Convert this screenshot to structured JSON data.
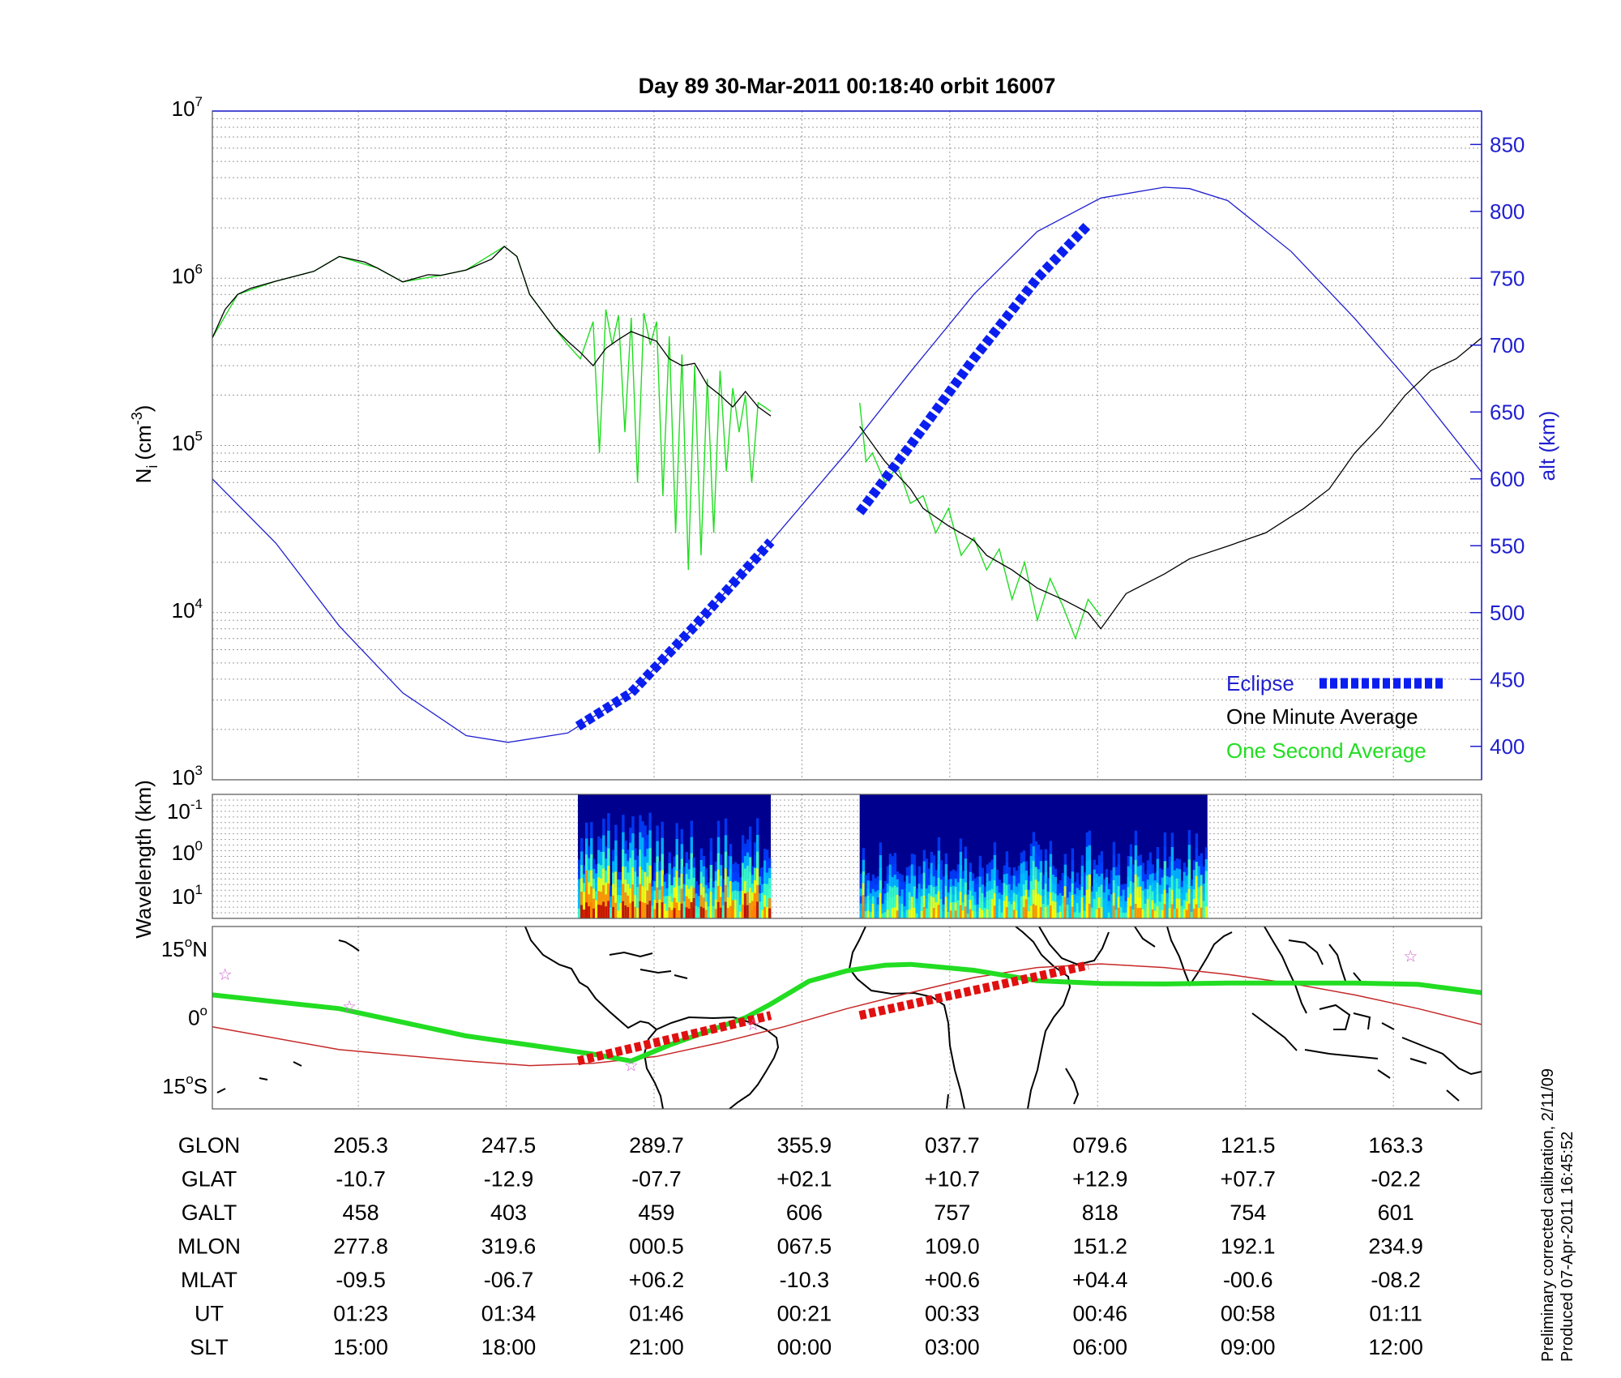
{
  "chart_data": [
    {
      "type": "line",
      "panel": "density_altitude",
      "title": "Day 89  30-Mar-2011 00:18:40   orbit 16007",
      "ylabel": "N_i (cm^-3)",
      "ylabel_main": "N",
      "ylabel_sub": "i",
      "ylabel_unit_base": "(cm",
      "ylabel_unit_exp": "-3",
      "ylabel_unit_close": ")",
      "y2label": "alt (km)",
      "yscale": "log",
      "ylim": [
        1000,
        10000000
      ],
      "y2lim": [
        375,
        875
      ],
      "xlim": [
        0,
        1
      ],
      "grid": true,
      "legend_position": "lower-right",
      "y_ticks": [
        {
          "base": "10",
          "exp": "3",
          "value": 1000
        },
        {
          "base": "10",
          "exp": "4",
          "value": 10000
        },
        {
          "base": "10",
          "exp": "5",
          "value": 100000
        },
        {
          "base": "10",
          "exp": "6",
          "value": 1000000
        },
        {
          "base": "10",
          "exp": "7",
          "value": 10000000
        }
      ],
      "y2_ticks": [
        "400",
        "450",
        "500",
        "550",
        "600",
        "650",
        "700",
        "750",
        "800",
        "850"
      ],
      "legend": {
        "eclipse": "Eclipse",
        "one_minute": "One Minute Average",
        "one_second": "One Second Average"
      },
      "colors": {
        "altitude": "#1f1fd0",
        "eclipse": "#0a1ef0",
        "one_minute": "#000000",
        "one_second": "#22dd22",
        "axis_right": "#1f1fd0"
      },
      "series": [
        {
          "name": "One Minute Average",
          "segments": [
            {
              "x": [
                0.0,
                0.01,
                0.02,
                0.03,
                0.05,
                0.08,
                0.1,
                0.12,
                0.13,
                0.15,
                0.17,
                0.18,
                0.2,
                0.22,
                0.23,
                0.24,
                0.25,
                0.27,
                0.28,
                0.29,
                0.3,
                0.31,
                0.32,
                0.33,
                0.35,
                0.36,
                0.37,
                0.38,
                0.39,
                0.4,
                0.41,
                0.42,
                0.43,
                0.44
              ],
              "y": [
                440000,
                650000,
                800000,
                870000,
                960000,
                1100000,
                1350000,
                1250000,
                1150000,
                950000,
                1050000,
                1040000,
                1120000,
                1300000,
                1550000,
                1350000,
                800000,
                500000,
                420000,
                360000,
                300000,
                380000,
                430000,
                480000,
                420000,
                330000,
                300000,
                310000,
                230000,
                200000,
                170000,
                210000,
                170000,
                150000
              ]
            },
            {
              "x": [
                0.51,
                0.53,
                0.55,
                0.56,
                0.58,
                0.6,
                0.61,
                0.63,
                0.65,
                0.67,
                0.69,
                0.7,
                0.72,
                0.75,
                0.77,
                0.8,
                0.83,
                0.86,
                0.88,
                0.9,
                0.92,
                0.94,
                0.96,
                0.98,
                1.0
              ],
              "y": [
                130000,
                80000,
                55000,
                42000,
                33000,
                27000,
                22000,
                18000,
                14000,
                12000,
                10000,
                8000,
                13000,
                17000,
                21000,
                25000,
                30000,
                42000,
                55000,
                90000,
                130000,
                200000,
                280000,
                330000,
                440000
              ]
            }
          ]
        },
        {
          "name": "One Second Average",
          "segments": [
            {
              "x": [
                0.0,
                0.02,
                0.05,
                0.08,
                0.1,
                0.13,
                0.15,
                0.18,
                0.2,
                0.23,
                0.24,
                0.25,
                0.27,
                0.28,
                0.29,
                0.3,
                0.305,
                0.31,
                0.315,
                0.32,
                0.325,
                0.33,
                0.335,
                0.34,
                0.345,
                0.35,
                0.355,
                0.36,
                0.365,
                0.37,
                0.375,
                0.38,
                0.385,
                0.39,
                0.395,
                0.4,
                0.405,
                0.41,
                0.415,
                0.42,
                0.425,
                0.43,
                0.435,
                0.44
              ],
              "y": [
                440000,
                800000,
                960000,
                1100000,
                1350000,
                1150000,
                950000,
                1040000,
                1120000,
                1550000,
                1350000,
                800000,
                500000,
                400000,
                330000,
                550000,
                90000,
                650000,
                400000,
                600000,
                120000,
                580000,
                60000,
                620000,
                400000,
                550000,
                50000,
                450000,
                30000,
                350000,
                18000,
                300000,
                22000,
                250000,
                30000,
                280000,
                70000,
                220000,
                120000,
                200000,
                60000,
                180000,
                170000,
                160000
              ]
            },
            {
              "x": [
                0.51,
                0.515,
                0.52,
                0.53,
                0.54,
                0.55,
                0.56,
                0.57,
                0.58,
                0.59,
                0.6,
                0.61,
                0.62,
                0.63,
                0.64,
                0.65,
                0.66,
                0.67,
                0.68,
                0.69,
                0.7
              ],
              "y": [
                180000,
                80000,
                90000,
                60000,
                75000,
                45000,
                50000,
                30000,
                42000,
                22000,
                28000,
                18000,
                24000,
                12000,
                20000,
                9000,
                16000,
                11000,
                7000,
                12000,
                9500
              ]
            }
          ]
        },
        {
          "name": "alt (km)",
          "axis": "right",
          "x": [
            0.0,
            0.05,
            0.1,
            0.15,
            0.2,
            0.233,
            0.28,
            0.33,
            0.38,
            0.44,
            0.5,
            0.55,
            0.6,
            0.65,
            0.7,
            0.75,
            0.77,
            0.8,
            0.85,
            0.9,
            0.95,
            1.0
          ],
          "y": [
            600,
            552,
            490,
            440,
            408,
            403,
            410,
            440,
            490,
            553,
            620,
            680,
            738,
            785,
            810,
            818,
            817,
            808,
            770,
            720,
            665,
            605
          ]
        },
        {
          "name": "Eclipse",
          "axis": "right",
          "segments": [
            {
              "x": [
                0.288,
                0.33,
                0.38,
                0.44
              ],
              "y": [
                415,
                440,
                490,
                553
              ]
            },
            {
              "x": [
                0.51,
                0.55,
                0.6,
                0.65,
                0.69
              ],
              "y": [
                575,
                625,
                690,
                750,
                790
              ]
            }
          ]
        }
      ],
      "x_ticks_slt": [
        "15:00",
        "18:00",
        "21:00",
        "00:00",
        "03:00",
        "06:00",
        "09:00",
        "12:00"
      ]
    },
    {
      "type": "heatmap",
      "panel": "spectrogram",
      "ylabel": "Wavelength (km)",
      "yscale": "log",
      "y_ticks": [
        {
          "base": "10",
          "exp": "-1"
        },
        {
          "base": "10",
          "exp": "0"
        },
        {
          "base": "10",
          "exp": "1"
        }
      ],
      "colormap": [
        "#00008f",
        "#0040ff",
        "#00c0ff",
        "#40ffbf",
        "#ffff00",
        "#ff8000",
        "#c00000"
      ],
      "blocks": [
        {
          "x_start": 0.288,
          "x_end": 0.44
        },
        {
          "x_start": 0.51,
          "x_end": 0.784
        }
      ]
    },
    {
      "type": "line",
      "panel": "ground_track_map",
      "y_ticks": [
        {
          "deg": "15",
          "suffix": "N"
        },
        {
          "deg": "0",
          "suffix": ""
        },
        {
          "deg": "15",
          "suffix": "S"
        }
      ],
      "ylim": [
        -20,
        20
      ],
      "colors": {
        "dip_equator": "#c62828",
        "track": "#22dd22",
        "eclipse": "#e01010",
        "stars": "#d060d0"
      },
      "series": [
        {
          "name": "ground track",
          "x": [
            0.0,
            0.1,
            0.2,
            0.3,
            0.33,
            0.36,
            0.4,
            0.42,
            0.44,
            0.47,
            0.5,
            0.53,
            0.55,
            0.6,
            0.65,
            0.7,
            0.75,
            0.8,
            0.85,
            0.9,
            0.95,
            1.0
          ],
          "y": [
            5,
            2,
            -4,
            -8,
            -9.5,
            -6,
            -2,
            0,
            3,
            8,
            10.3,
            11.5,
            11.7,
            10.4,
            8.1,
            7.5,
            7.4,
            7.6,
            7.6,
            7.6,
            7.3,
            5.5
          ]
        },
        {
          "name": "magnetic equator",
          "x": [
            0.0,
            0.1,
            0.2,
            0.25,
            0.3,
            0.35,
            0.4,
            0.45,
            0.5,
            0.55,
            0.6,
            0.65,
            0.7,
            0.75,
            0.8,
            0.85,
            0.9,
            0.95,
            1.0
          ],
          "y": [
            -2,
            -7,
            -9.5,
            -10.5,
            -10,
            -8.5,
            -5.5,
            -2,
            2,
            5.5,
            8.8,
            11,
            11.8,
            11,
            9.5,
            7.5,
            5,
            2,
            -1.5
          ]
        },
        {
          "name": "Eclipse",
          "segments": [
            {
              "x": [
                0.288,
                0.44
              ],
              "y": [
                -9.5,
                0.5
              ]
            },
            {
              "x": [
                0.51,
                0.69
              ],
              "y": [
                0.5,
                11.5
              ]
            }
          ]
        }
      ],
      "stars": [
        {
          "x": 0.01,
          "y": 9.5
        },
        {
          "x": 0.108,
          "y": 2.5
        },
        {
          "x": 0.33,
          "y": -10.5
        },
        {
          "x": 0.426,
          "y": -1.5
        },
        {
          "x": 0.944,
          "y": 13.5
        }
      ]
    }
  ],
  "table": {
    "rows": [
      {
        "label": "GLON",
        "values": [
          "205.3",
          "247.5",
          "289.7",
          "355.9",
          "037.7",
          "079.6",
          "121.5",
          "163.3"
        ]
      },
      {
        "label": "GLAT",
        "values": [
          "-10.7",
          "-12.9",
          "-07.7",
          "+02.1",
          "+10.7",
          "+12.9",
          "+07.7",
          "-02.2"
        ]
      },
      {
        "label": "GALT",
        "values": [
          "458",
          "403",
          "459",
          "606",
          "757",
          "818",
          "754",
          "601"
        ]
      },
      {
        "label": "MLON",
        "values": [
          "277.8",
          "319.6",
          "000.5",
          "067.5",
          "109.0",
          "151.2",
          "192.1",
          "234.9"
        ]
      },
      {
        "label": "MLAT",
        "values": [
          "-09.5",
          "-06.7",
          "+06.2",
          "-10.3",
          "+00.6",
          "+04.4",
          "-00.6",
          "-08.2"
        ]
      },
      {
        "label": "UT",
        "values": [
          "01:23",
          "01:34",
          "01:46",
          "00:21",
          "00:33",
          "00:46",
          "00:58",
          "01:11"
        ]
      },
      {
        "label": "SLT",
        "values": [
          "15:00",
          "18:00",
          "21:00",
          "00:00",
          "03:00",
          "06:00",
          "09:00",
          "12:00"
        ]
      }
    ]
  },
  "footer": {
    "line1": "Preliminary corrected calibration, 2/11/09",
    "line2": "Produced 07-Apr-2011 16:45:52"
  }
}
